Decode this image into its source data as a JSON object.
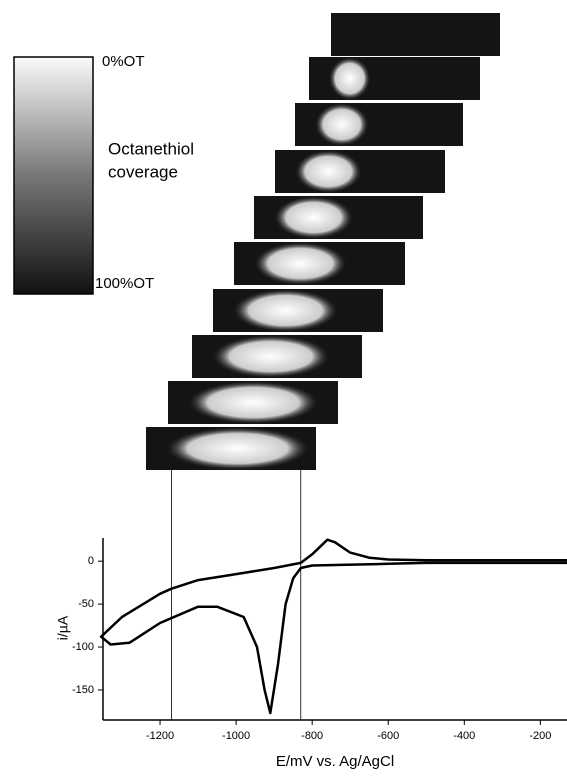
{
  "chart_data": {
    "type": "line",
    "legend_top": "0%OT",
    "legend_mid_1": "Octanethiol",
    "legend_mid_2": "coverage",
    "legend_bottom": "100%OT",
    "xlabel": "E/mV vs. Ag/AgCl",
    "ylabel": "i/µA",
    "x": [
      -130,
      -300,
      -500,
      -600,
      -800,
      -830,
      -850,
      -870,
      -890,
      -910,
      -925,
      -945,
      -980,
      -1050,
      -1100,
      -1200,
      -1280,
      -1330,
      -1355,
      -1300,
      -1200,
      -1170,
      -1100,
      -1000,
      -900,
      -830,
      -800,
      -760,
      -740,
      -700,
      -650,
      -600,
      -500,
      -300,
      -130
    ],
    "values": [
      -2,
      -2,
      -2,
      -3,
      -5,
      -8,
      -20,
      -50,
      -120,
      -177,
      -150,
      -100,
      -65,
      -53,
      -53,
      -72,
      -95,
      -97,
      -88,
      -65,
      -38,
      -32,
      -22,
      -15,
      -8,
      -2,
      8,
      25,
      22,
      10,
      4,
      2,
      1,
      1,
      1
    ],
    "color": "#000000",
    "reference_lines": [
      -1170,
      -830
    ],
    "xlim": [
      -1350,
      -130
    ],
    "ylim": [
      -185,
      27
    ],
    "xticks": [
      -1200,
      -1000,
      -800,
      -600,
      -400,
      -200
    ],
    "yticks": [
      0,
      -50,
      -100,
      -150
    ],
    "grid": false
  }
}
